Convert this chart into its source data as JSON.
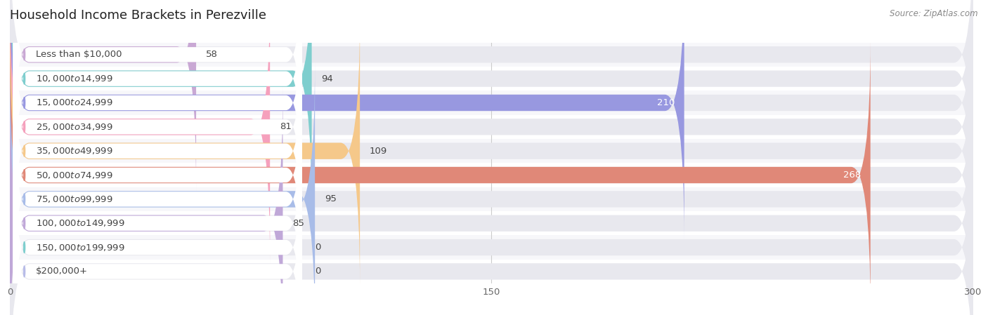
{
  "title": "Household Income Brackets in Perezville",
  "source": "Source: ZipAtlas.com",
  "categories": [
    "Less than $10,000",
    "$10,000 to $14,999",
    "$15,000 to $24,999",
    "$25,000 to $34,999",
    "$35,000 to $49,999",
    "$50,000 to $74,999",
    "$75,000 to $99,999",
    "$100,000 to $149,999",
    "$150,000 to $199,999",
    "$200,000+"
  ],
  "values": [
    58,
    94,
    210,
    81,
    109,
    268,
    95,
    85,
    0,
    0
  ],
  "bar_colors": [
    "#c9a8d4",
    "#7ecece",
    "#9898e0",
    "#f5a0bc",
    "#f5c88a",
    "#e08878",
    "#a8bce8",
    "#c0a8d8",
    "#7ecece",
    "#b8bce8"
  ],
  "xlim": [
    0,
    300
  ],
  "xticks": [
    0,
    150,
    300
  ],
  "bar_bg_color": "#e8e8ee",
  "row_colors": [
    "#f7f7fa",
    "#ffffff"
  ],
  "title_fontsize": 13,
  "label_fontsize": 9.5,
  "value_fontsize": 9.5,
  "label_pill_color": "#ffffff",
  "label_text_color": "#444444"
}
